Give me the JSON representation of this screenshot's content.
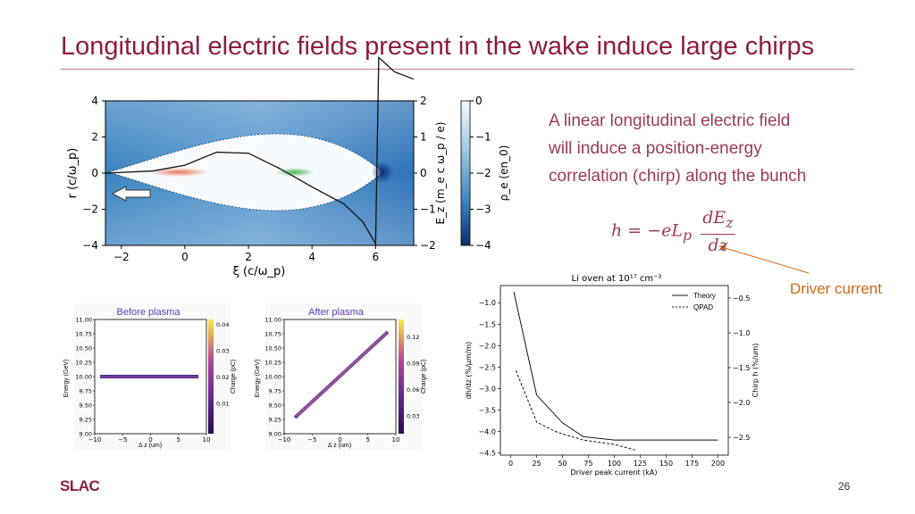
{
  "slide": {
    "title": "Longitudinal electric fields present in the wake induce large chirps",
    "description": [
      "A linear longitudinal electric field",
      "will induce a position-energy",
      "correlation (chirp) along the bunch"
    ],
    "formula": {
      "lhs": "h = −eL",
      "sub": "p",
      "numerator": "dE",
      "num_sub": "z",
      "denominator": "dz"
    },
    "annotation": "Driver current",
    "page_number": "26",
    "logo_text": "SLAC"
  },
  "colors": {
    "title": "#8c1d3e",
    "text": "#9a3b55",
    "annotation": "#d06a14"
  },
  "chart_data": [
    {
      "type": "heatmap",
      "xlabel": "ξ (c/ω_p)",
      "ylabel": "r (c/ω_p)",
      "right_axis_label": "E_z (m_e c ω_p / e)",
      "colorbar_label": "ρ_e (en_0)",
      "x_ticks": [
        "−2",
        "0",
        "2",
        "4",
        "6"
      ],
      "y_ticks": [
        "4",
        "2",
        "0",
        "−2",
        "−4"
      ],
      "right_ticks": [
        "2",
        "1",
        "0",
        "−1",
        "−2"
      ],
      "colorbar_ticks": [
        "0",
        "−1",
        "−2",
        "−3",
        "−4"
      ],
      "xlim": [
        -2.5,
        7.2
      ],
      "ylim": [
        -4,
        4
      ],
      "ez_curve": [
        [
          -2.5,
          0.0
        ],
        [
          -1,
          0.06
        ],
        [
          0,
          0.22
        ],
        [
          1,
          0.58
        ],
        [
          2,
          0.55
        ],
        [
          3,
          0.12
        ],
        [
          4,
          -0.38
        ],
        [
          5,
          -0.85
        ],
        [
          5.6,
          -1.35
        ],
        [
          6,
          -1.95
        ],
        [
          6.1,
          3.2
        ],
        [
          6.6,
          2.8
        ],
        [
          7.2,
          2.6
        ]
      ],
      "arrow": "pointing left"
    },
    {
      "type": "scatter",
      "title": "Before plasma",
      "xlabel": "Δ z (um)",
      "ylabel": "Energy (GeV)",
      "colorbar_label": "Charge (pC)",
      "xlim": [
        -10,
        10
      ],
      "ylim": [
        9,
        11
      ],
      "x_ticks": [
        "−10",
        "−5",
        "0",
        "5",
        "10"
      ],
      "y_ticks": [
        "11.00",
        "10.75",
        "10.50",
        "10.25",
        "10.00",
        "9.75",
        "9.50",
        "9.25",
        "9.00"
      ],
      "colorbar_ticks": [
        "0.04",
        "0.03",
        "0.02",
        "0.01"
      ],
      "points": [
        [
          -8,
          10.0
        ],
        [
          8,
          10.0
        ]
      ]
    },
    {
      "type": "scatter",
      "title": "After plasma",
      "xlabel": "Δ z (um)",
      "ylabel": "Energy (GeV)",
      "colorbar_label": "Charge (pC)",
      "xlim": [
        -10,
        10
      ],
      "ylim": [
        9,
        11
      ],
      "x_ticks": [
        "−10",
        "−5",
        "0",
        "5",
        "10"
      ],
      "y_ticks": [
        "11.00",
        "10.75",
        "10.50",
        "10.25",
        "10.00",
        "9.75",
        "9.50",
        "9.25",
        "9.00"
      ],
      "colorbar_ticks": [
        "0.12",
        "0.09",
        "0.06",
        "0.03"
      ],
      "points": [
        [
          -8,
          9.25
        ],
        [
          8,
          10.8
        ]
      ]
    },
    {
      "type": "line",
      "title": "Li oven at 10¹⁷ cm⁻³",
      "xlabel": "Driver peak current (kA)",
      "ylabel": "dh/dz (%/μm/m)",
      "right_axis_label": "Chirp h (%/um)",
      "x_ticks": [
        "0",
        "25",
        "50",
        "75",
        "100",
        "125",
        "150",
        "175",
        "200"
      ],
      "y_ticks": [
        "−1.0",
        "−1.5",
        "−2.0",
        "−2.5",
        "−3.0",
        "−3.5",
        "−4.0",
        "−4.5"
      ],
      "right_ticks": [
        "−0.5",
        "−1.0",
        "−1.5",
        "−2.0",
        "−2.5"
      ],
      "xlim": [
        -10,
        210
      ],
      "ylim": [
        -4.55,
        -0.6
      ],
      "series": [
        {
          "name": "Theory",
          "style": "solid",
          "x": [
            3,
            25,
            50,
            70,
            100,
            130,
            200
          ],
          "y": [
            -0.75,
            -3.15,
            -3.8,
            -4.12,
            -4.2,
            -4.2,
            -4.2
          ]
        },
        {
          "name": "QPAD",
          "style": "dashed",
          "x": [
            5,
            25,
            45,
            70,
            100,
            120
          ],
          "y": [
            -2.58,
            -3.78,
            -4.02,
            -4.2,
            -4.3,
            -4.43
          ]
        }
      ],
      "legend": "top-right"
    }
  ]
}
